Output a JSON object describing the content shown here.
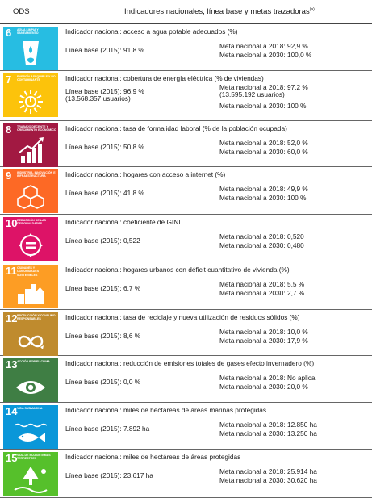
{
  "header": {
    "ods": "ODS",
    "indicators": "Indicadores nacionales, línea base y metas trazadoras",
    "note_mark": "(a)"
  },
  "rows": [
    {
      "icon": {
        "color": "#27bde2",
        "number": "6",
        "goal": "Agua limpia y saneamiento",
        "symbol": "water-glass-icon"
      },
      "indicator": "Indicador nacional: acceso a agua potable adecuados (%)",
      "baseline": "Línea base (2015): 91,8 %",
      "baseline_extra": "",
      "meta_2018": "Meta nacional a 2018: 92,9 %",
      "meta_2018_extra": "",
      "meta_2030": "Meta nacional a 2030: 100,0 %"
    },
    {
      "icon": {
        "color": "#fcc30b",
        "number": "7",
        "goal": "Energía asequible y no contaminante",
        "symbol": "sun-power-icon"
      },
      "indicator": "Indicador nacional: cobertura de energía eléctrica (% de viviendas)",
      "baseline": "Línea base (2015): 96,9 %",
      "baseline_extra": "(13.568.357 usuarios)",
      "meta_2018": "Meta nacional a 2018: 97,2 %",
      "meta_2018_extra": "(13.595.192 usuarios)",
      "meta_2030": "Meta nacional a 2030: 100 %"
    },
    {
      "icon": {
        "color": "#a21942",
        "number": "8",
        "goal": "Trabajo decente y crecimiento económico",
        "symbol": "growth-chart-icon"
      },
      "indicator": "Indicador nacional: tasa de formalidad laboral (% de la población ocupada)",
      "baseline": "Línea base (2015): 50,8 %",
      "baseline_extra": "",
      "meta_2018": "Meta nacional a 2018: 52,0 %",
      "meta_2018_extra": "",
      "meta_2030": "Meta nacional a 2030: 60,0 %"
    },
    {
      "icon": {
        "color": "#fd6925",
        "number": "9",
        "goal": "Industria, innovación e infraestructura",
        "symbol": "cubes-icon"
      },
      "indicator": "Indicador nacional: hogares con acceso a internet (%)",
      "baseline": "Línea base (2015): 41,8 %",
      "baseline_extra": "",
      "meta_2018": "Meta nacional a 2018: 49,9 %",
      "meta_2018_extra": "",
      "meta_2030": "Meta nacional a 2030: 100 %"
    },
    {
      "icon": {
        "color": "#dd1367",
        "number": "10",
        "goal": "Reducción de las desigualdades",
        "symbol": "equality-icon"
      },
      "indicator": "Indicador nacional: coeficiente de GINI",
      "baseline": "Línea base (2015): 0,522",
      "baseline_extra": "",
      "meta_2018": "Meta nacional a 2018: 0,520",
      "meta_2018_extra": "",
      "meta_2030": "Meta nacional a 2030: 0,480"
    },
    {
      "icon": {
        "color": "#fd9d24",
        "number": "11",
        "goal": "Ciudades y comunidades sostenibles",
        "symbol": "city-icon"
      },
      "indicator": "Indicador nacional: hogares urbanos con déficit cuantitativo de vivienda (%)",
      "baseline": "Línea base (2015): 6,7 %",
      "baseline_extra": "",
      "meta_2018": "Meta nacional a 2018: 5,5 %",
      "meta_2018_extra": "",
      "meta_2030": "Meta nacional a 2030: 2,7 %"
    },
    {
      "icon": {
        "color": "#bf8b2e",
        "number": "12",
        "goal": "Producción y consumo responsables",
        "symbol": "infinity-loop-icon"
      },
      "indicator": "Indicador nacional: tasa de reciclaje y nueva utilización de residuos sólidos (%)",
      "baseline": "Línea base (2015): 8,6 %",
      "baseline_extra": "",
      "meta_2018": "Meta nacional a 2018: 10,0 %",
      "meta_2018_extra": "",
      "meta_2030": "Meta nacional a 2030: 17,9 %"
    },
    {
      "icon": {
        "color": "#3f7e44",
        "number": "13",
        "goal": "Acción por el clima",
        "symbol": "eye-globe-icon"
      },
      "indicator": "Indicador nacional: reducción de emisiones totales de gases efecto invernadero (%)",
      "baseline": "Línea base (2015): 0,0 %",
      "baseline_extra": "",
      "meta_2018": "Meta nacional a 2018: No aplica",
      "meta_2018_extra": "",
      "meta_2030": "Meta nacional a 2030: 20,0 %"
    },
    {
      "icon": {
        "color": "#0a97d9",
        "number": "14",
        "goal": "Vida submarina",
        "symbol": "fish-icon"
      },
      "indicator": "Indicador nacional: miles de hectáreas de áreas marinas protegidas",
      "baseline": "Línea base (2015): 7.892 ha",
      "baseline_extra": "",
      "meta_2018": "Meta nacional a 2018: 12.850 ha",
      "meta_2018_extra": "",
      "meta_2030": "Meta nacional a 2030: 13.250 ha"
    },
    {
      "icon": {
        "color": "#56c02b",
        "number": "15",
        "goal": "Vida de ecosistemas terrestres",
        "symbol": "tree-icon"
      },
      "indicator": "Indicador nacional: miles de hectáreas de áreas protegidas",
      "baseline": "Línea base (2015): 23.617 ha",
      "baseline_extra": "",
      "meta_2018": "Meta nacional a 2018: 25.914 ha",
      "meta_2018_extra": "",
      "meta_2030": "Meta nacional a 2030: 30.620 ha"
    }
  ]
}
